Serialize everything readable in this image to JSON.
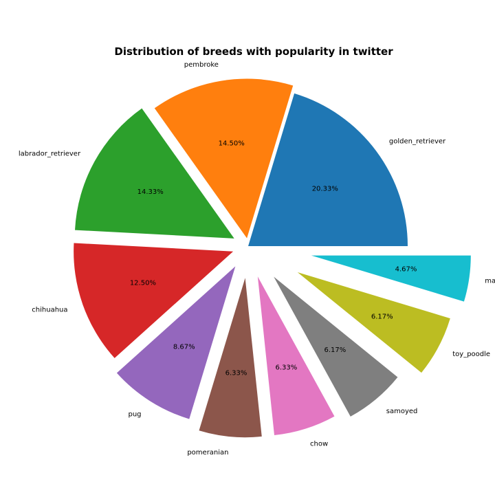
{
  "chart_data": {
    "type": "pie",
    "title": "Distribution of breeds with popularity in twitter",
    "labels": [
      "golden_retriever",
      "pembroke",
      "labrador_retriever",
      "chihuahua",
      "pug",
      "pomeranian",
      "chow",
      "samoyed",
      "toy_poodle",
      "malamute"
    ],
    "percent_labels": [
      "20.33%",
      "14.50%",
      "14.33%",
      "12.50%",
      "8.67%",
      "6.33%",
      "6.33%",
      "6.17%",
      "6.17%",
      "4.67%"
    ],
    "values": [
      20.33,
      14.5,
      14.33,
      12.5,
      8.67,
      6.33,
      6.33,
      6.17,
      6.17,
      4.67
    ],
    "colors": [
      "#1f77b4",
      "#ff7f0e",
      "#2ca02c",
      "#d62728",
      "#9467bd",
      "#8c564b",
      "#e377c2",
      "#7f7f7f",
      "#bcbd22",
      "#17becf"
    ],
    "explode": [
      0,
      0.05,
      0.1,
      0.1,
      0.15,
      0.2,
      0.2,
      0.25,
      0.35,
      0.4
    ],
    "start_angle_deg": 0,
    "direction": "counterclockwise",
    "legend": "none"
  }
}
